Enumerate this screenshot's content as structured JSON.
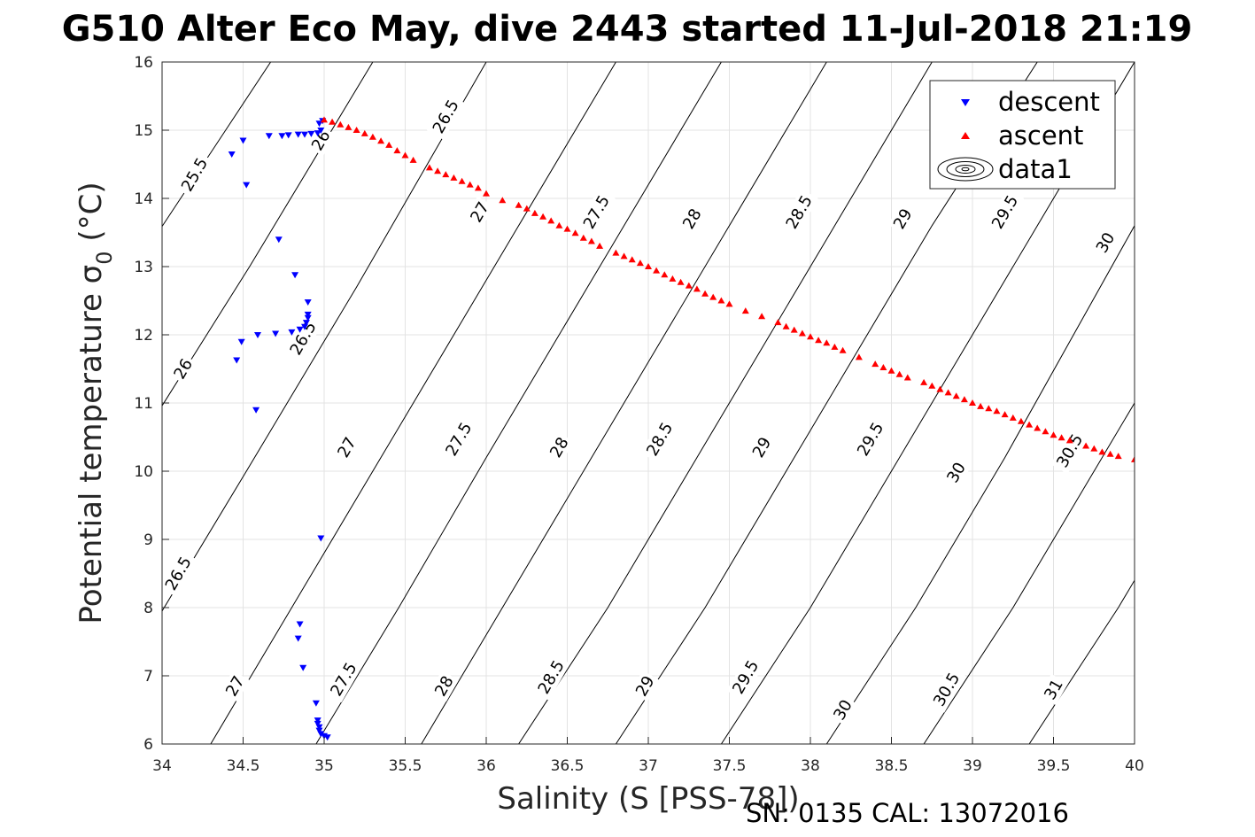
{
  "chart_data": {
    "type": "scatter",
    "title": "G510 Alter Eco May, dive 2443 started 11-Jul-2018 21:19",
    "xlabel": "Salinity (S [PSS-78])",
    "ylabel_text": "Potential temperature ",
    "ylabel_symbol": "σ",
    "ylabel_sub": "0",
    "ylabel_unit": " (°C)",
    "footer": "SN: 0135  CAL: 13072016",
    "xlim": [
      34,
      40
    ],
    "ylim": [
      6,
      16
    ],
    "xticks": [
      "34",
      "34.5",
      "35",
      "35.5",
      "36",
      "36.5",
      "37",
      "37.5",
      "38",
      "38.5",
      "39",
      "39.5",
      "40"
    ],
    "yticks": [
      "6",
      "7",
      "8",
      "9",
      "10",
      "11",
      "12",
      "13",
      "14",
      "15",
      "16"
    ],
    "grid": true,
    "legend_position": "top-right",
    "legend": [
      "descent",
      "ascent",
      "data1"
    ],
    "series": [
      {
        "name": "descent",
        "marker": "triangle-down",
        "color": "#0000ff",
        "points": [
          [
            34.43,
            14.65
          ],
          [
            34.5,
            14.85
          ],
          [
            34.52,
            14.2
          ],
          [
            34.66,
            14.92
          ],
          [
            34.74,
            14.92
          ],
          [
            34.78,
            14.93
          ],
          [
            34.84,
            14.94
          ],
          [
            34.88,
            14.94
          ],
          [
            34.92,
            14.95
          ],
          [
            34.96,
            14.96
          ],
          [
            34.98,
            15.0
          ],
          [
            34.97,
            15.1
          ],
          [
            34.99,
            15.14
          ],
          [
            34.72,
            13.4
          ],
          [
            34.82,
            12.88
          ],
          [
            34.9,
            12.48
          ],
          [
            34.9,
            12.3
          ],
          [
            34.9,
            12.25
          ],
          [
            34.89,
            12.18
          ],
          [
            34.88,
            12.12
          ],
          [
            34.85,
            12.08
          ],
          [
            34.8,
            12.04
          ],
          [
            34.7,
            12.02
          ],
          [
            34.59,
            12.0
          ],
          [
            34.49,
            11.9
          ],
          [
            34.46,
            11.63
          ],
          [
            34.58,
            10.9
          ],
          [
            34.98,
            9.02
          ],
          [
            34.85,
            7.76
          ],
          [
            34.84,
            7.55
          ],
          [
            34.87,
            7.12
          ],
          [
            34.95,
            6.6
          ],
          [
            34.96,
            6.35
          ],
          [
            34.96,
            6.3
          ],
          [
            34.97,
            6.25
          ],
          [
            34.97,
            6.2
          ],
          [
            34.98,
            6.15
          ],
          [
            35.0,
            6.12
          ],
          [
            35.02,
            6.1
          ]
        ]
      },
      {
        "name": "ascent",
        "marker": "triangle-up",
        "color": "#ff0000",
        "points": [
          [
            35.0,
            15.15
          ],
          [
            35.05,
            15.12
          ],
          [
            35.1,
            15.08
          ],
          [
            35.15,
            15.04
          ],
          [
            35.2,
            15.0
          ],
          [
            35.25,
            14.95
          ],
          [
            35.3,
            14.9
          ],
          [
            35.35,
            14.84
          ],
          [
            35.4,
            14.78
          ],
          [
            35.45,
            14.7
          ],
          [
            35.5,
            14.63
          ],
          [
            35.55,
            14.56
          ],
          [
            35.65,
            14.45
          ],
          [
            35.7,
            14.4
          ],
          [
            35.75,
            14.35
          ],
          [
            35.8,
            14.3
          ],
          [
            35.85,
            14.25
          ],
          [
            35.9,
            14.2
          ],
          [
            35.95,
            14.15
          ],
          [
            36.0,
            14.07
          ],
          [
            36.1,
            13.97
          ],
          [
            36.2,
            13.9
          ],
          [
            36.25,
            13.85
          ],
          [
            36.3,
            13.78
          ],
          [
            36.35,
            13.73
          ],
          [
            36.4,
            13.67
          ],
          [
            36.45,
            13.6
          ],
          [
            36.5,
            13.55
          ],
          [
            36.55,
            13.49
          ],
          [
            36.6,
            13.42
          ],
          [
            36.65,
            13.37
          ],
          [
            36.7,
            13.3
          ],
          [
            36.8,
            13.2
          ],
          [
            36.85,
            13.15
          ],
          [
            36.9,
            13.1
          ],
          [
            36.95,
            13.05
          ],
          [
            37.0,
            13.0
          ],
          [
            37.05,
            12.94
          ],
          [
            37.1,
            12.88
          ],
          [
            37.15,
            12.82
          ],
          [
            37.2,
            12.77
          ],
          [
            37.25,
            12.72
          ],
          [
            37.3,
            12.67
          ],
          [
            37.35,
            12.6
          ],
          [
            37.4,
            12.55
          ],
          [
            37.45,
            12.5
          ],
          [
            37.5,
            12.45
          ],
          [
            37.6,
            12.35
          ],
          [
            37.7,
            12.27
          ],
          [
            37.8,
            12.18
          ],
          [
            37.85,
            12.12
          ],
          [
            37.9,
            12.07
          ],
          [
            37.95,
            12.02
          ],
          [
            38.0,
            11.97
          ],
          [
            38.05,
            11.92
          ],
          [
            38.1,
            11.88
          ],
          [
            38.15,
            11.82
          ],
          [
            38.2,
            11.77
          ],
          [
            38.3,
            11.67
          ],
          [
            38.4,
            11.57
          ],
          [
            38.45,
            11.52
          ],
          [
            38.5,
            11.47
          ],
          [
            38.55,
            11.42
          ],
          [
            38.6,
            11.37
          ],
          [
            38.7,
            11.3
          ],
          [
            38.75,
            11.25
          ],
          [
            38.8,
            11.2
          ],
          [
            38.85,
            11.15
          ],
          [
            38.9,
            11.1
          ],
          [
            38.95,
            11.05
          ],
          [
            39.0,
            11.0
          ],
          [
            39.05,
            10.95
          ],
          [
            39.1,
            10.92
          ],
          [
            39.15,
            10.88
          ],
          [
            39.2,
            10.83
          ],
          [
            39.25,
            10.78
          ],
          [
            39.3,
            10.73
          ],
          [
            39.35,
            10.68
          ],
          [
            39.4,
            10.63
          ],
          [
            39.45,
            10.58
          ],
          [
            39.5,
            10.53
          ],
          [
            39.55,
            10.49
          ],
          [
            39.6,
            10.45
          ],
          [
            39.7,
            10.37
          ],
          [
            39.75,
            10.33
          ],
          [
            39.8,
            10.28
          ],
          [
            39.85,
            10.25
          ],
          [
            39.9,
            10.22
          ],
          [
            40.0,
            10.17
          ]
        ]
      },
      {
        "name": "data1",
        "type": "contour",
        "contours": [
          {
            "level": "25.5",
            "points": [
              [
                34.0,
                13.59
              ],
              [
                34.67,
                16.0
              ]
            ]
          },
          {
            "level": "26",
            "points": [
              [
                34.0,
                10.96
              ],
              [
                34.54,
                13.0
              ],
              [
                35.3,
                16.0
              ]
            ]
          },
          {
            "level": "26.5",
            "points": [
              [
                34.0,
                7.95
              ],
              [
                34.52,
                10.0
              ],
              [
                35.2,
                12.7
              ],
              [
                36.0,
                16.0
              ]
            ]
          },
          {
            "level": "27",
            "points": [
              [
                34.3,
                6.0
              ],
              [
                34.8,
                8.0
              ],
              [
                35.4,
                10.4
              ],
              [
                36.2,
                13.6
              ],
              [
                36.8,
                16.0
              ]
            ]
          },
          {
            "level": "27.5",
            "points": [
              [
                34.95,
                6.0
              ],
              [
                35.46,
                8.0
              ],
              [
                36.0,
                10.2
              ],
              [
                36.8,
                13.4
              ],
              [
                37.45,
                16.0
              ]
            ]
          },
          {
            "level": "28",
            "points": [
              [
                35.6,
                6.0
              ],
              [
                36.1,
                8.0
              ],
              [
                36.7,
                10.4
              ],
              [
                37.5,
                13.6
              ],
              [
                38.1,
                16.0
              ]
            ]
          },
          {
            "level": "28.5",
            "points": [
              [
                36.2,
                6.0
              ],
              [
                36.75,
                8.0
              ],
              [
                37.3,
                10.2
              ],
              [
                38.1,
                13.4
              ],
              [
                38.75,
                16.0
              ]
            ]
          },
          {
            "level": "29",
            "points": [
              [
                36.8,
                6.0
              ],
              [
                37.35,
                8.0
              ],
              [
                37.95,
                10.4
              ],
              [
                38.75,
                13.6
              ],
              [
                39.4,
                16.0
              ]
            ]
          },
          {
            "level": "29.5",
            "points": [
              [
                37.45,
                6.0
              ],
              [
                38.0,
                8.0
              ],
              [
                38.55,
                10.2
              ],
              [
                39.35,
                13.4
              ],
              [
                40.0,
                16.0
              ]
            ]
          },
          {
            "level": "30",
            "points": [
              [
                38.1,
                6.0
              ],
              [
                38.65,
                8.0
              ],
              [
                39.2,
                10.2
              ],
              [
                40.0,
                13.6
              ]
            ]
          },
          {
            "level": "30.5",
            "points": [
              [
                38.7,
                6.0
              ],
              [
                39.25,
                8.0
              ],
              [
                39.8,
                10.2
              ],
              [
                40.0,
                11.0
              ]
            ]
          },
          {
            "level": "31",
            "points": [
              [
                39.35,
                6.0
              ],
              [
                39.9,
                8.0
              ],
              [
                40.0,
                8.4
              ]
            ]
          }
        ],
        "labels": [
          {
            "text": "25.5",
            "x": 34.2,
            "y": 14.35,
            "angle": -60
          },
          {
            "text": "26",
            "x": 34.13,
            "y": 11.5,
            "angle": -60
          },
          {
            "text": "26.5",
            "x": 34.1,
            "y": 8.5,
            "angle": -60
          },
          {
            "text": "27",
            "x": 34.45,
            "y": 6.85,
            "angle": -60
          },
          {
            "text": "26",
            "x": 34.98,
            "y": 14.85,
            "angle": -60
          },
          {
            "text": "26.5",
            "x": 34.87,
            "y": 11.95,
            "angle": -60
          },
          {
            "text": "27",
            "x": 35.14,
            "y": 10.35,
            "angle": -60
          },
          {
            "text": "27.5",
            "x": 35.12,
            "y": 6.95,
            "angle": -60
          },
          {
            "text": "26.5",
            "x": 35.75,
            "y": 15.2,
            "angle": -60
          },
          {
            "text": "27",
            "x": 35.96,
            "y": 13.8,
            "angle": -60
          },
          {
            "text": "27.5",
            "x": 35.83,
            "y": 10.47,
            "angle": -60
          },
          {
            "text": "28",
            "x": 35.74,
            "y": 6.85,
            "angle": -60
          },
          {
            "text": "27.5",
            "x": 36.68,
            "y": 13.8,
            "angle": -60
          },
          {
            "text": "28",
            "x": 36.45,
            "y": 10.35,
            "angle": -60
          },
          {
            "text": "28.5",
            "x": 36.4,
            "y": 6.98,
            "angle": -60
          },
          {
            "text": "28",
            "x": 37.27,
            "y": 13.7,
            "angle": -60
          },
          {
            "text": "28.5",
            "x": 37.07,
            "y": 10.47,
            "angle": -60
          },
          {
            "text": "29",
            "x": 36.98,
            "y": 6.85,
            "angle": -60
          },
          {
            "text": "28.5",
            "x": 37.93,
            "y": 13.8,
            "angle": -60
          },
          {
            "text": "29",
            "x": 37.7,
            "y": 10.35,
            "angle": -60
          },
          {
            "text": "29.5",
            "x": 37.6,
            "y": 6.98,
            "angle": -60
          },
          {
            "text": "29",
            "x": 38.57,
            "y": 13.7,
            "angle": -60
          },
          {
            "text": "29.5",
            "x": 38.37,
            "y": 10.47,
            "angle": -60
          },
          {
            "text": "30",
            "x": 38.2,
            "y": 6.5,
            "angle": -60
          },
          {
            "text": "29.5",
            "x": 39.2,
            "y": 13.8,
            "angle": -60
          },
          {
            "text": "30",
            "x": 38.9,
            "y": 9.98,
            "angle": -60
          },
          {
            "text": "30.5",
            "x": 38.84,
            "y": 6.8,
            "angle": -60
          },
          {
            "text": "30",
            "x": 39.82,
            "y": 13.35,
            "angle": -60
          },
          {
            "text": "30.5",
            "x": 39.6,
            "y": 10.3,
            "angle": -60
          },
          {
            "text": "31",
            "x": 39.5,
            "y": 6.8,
            "angle": -60
          }
        ]
      }
    ]
  }
}
